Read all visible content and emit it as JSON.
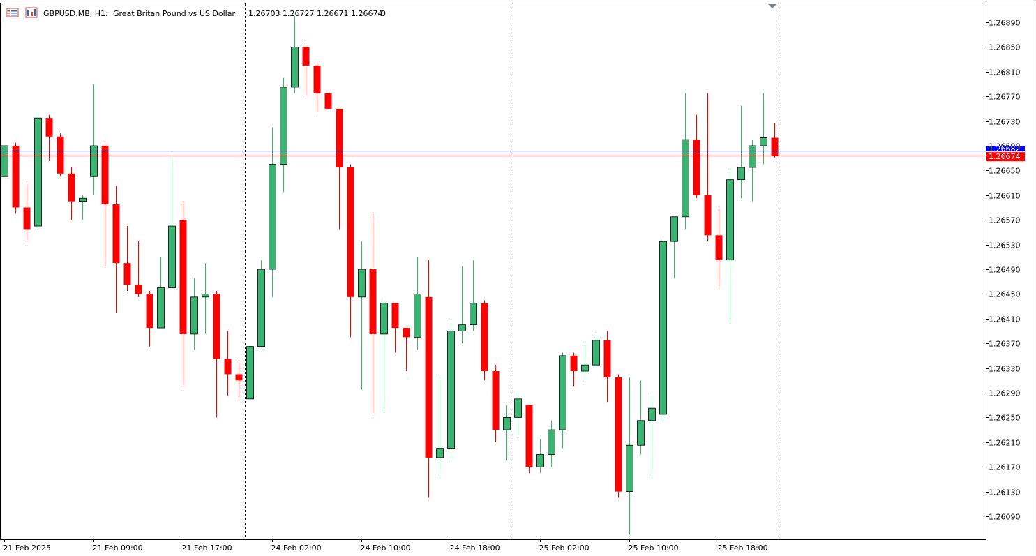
{
  "header": {
    "symbol": "GBPUSD.MB, H1:",
    "description": "Great Britan Pound vs US Dollar",
    "ohlc": "1.26703 1.26727 1.26671 1.26674",
    "volume": "0"
  },
  "colors": {
    "bull": "#3cb371",
    "bear": "#ff0000",
    "bid_line": "#ff0000",
    "ask_line": "#1a237e",
    "ask_label_bg": "#0000ff",
    "bid_label_bg": "#ff0000",
    "grid_separator": "#000000",
    "axis": "#000000"
  },
  "chart_data": {
    "type": "candlestick",
    "symbol": "GBPUSD.MB",
    "timeframe": "H1",
    "ylim": [
      1.2605,
      1.2695
    ],
    "y_ticks": [
      "1.26890",
      "1.26850",
      "1.26810",
      "1.26770",
      "1.26730",
      "1.26690",
      "1.26650",
      "1.26610",
      "1.26570",
      "1.26530",
      "1.26490",
      "1.26450",
      "1.26410",
      "1.26370",
      "1.26330",
      "1.26290",
      "1.26250",
      "1.26210",
      "1.26170",
      "1.26130",
      "1.26090"
    ],
    "x_labels": [
      {
        "index": 0,
        "label": "21 Feb 2025"
      },
      {
        "index": 8,
        "label": "21 Feb 09:00"
      },
      {
        "index": 16,
        "label": "21 Feb 17:00"
      },
      {
        "index": 24,
        "label": "24 Feb 02:00"
      },
      {
        "index": 32,
        "label": "24 Feb 10:00"
      },
      {
        "index": 40,
        "label": "24 Feb 18:00"
      },
      {
        "index": 48,
        "label": "25 Feb 02:00"
      },
      {
        "index": 56,
        "label": "25 Feb 10:00"
      },
      {
        "index": 64,
        "label": "25 Feb 18:00"
      }
    ],
    "day_separators": [
      22,
      46,
      70
    ],
    "bid": 1.26674,
    "bid_label": "1.26674",
    "ask_label": "1.26682",
    "ask": 1.26682,
    "candles": [
      [
        1.2664,
        1.2669,
        1.2664,
        1.2669
      ],
      [
        1.2669,
        1.26695,
        1.2658,
        1.2659
      ],
      [
        1.2659,
        1.2663,
        1.26535,
        1.26555
      ],
      [
        1.2656,
        1.26745,
        1.26555,
        1.26735
      ],
      [
        1.26735,
        1.2674,
        1.26665,
        1.26705
      ],
      [
        1.26705,
        1.2671,
        1.2664,
        1.26645
      ],
      [
        1.26645,
        1.26655,
        1.2657,
        1.266
      ],
      [
        1.266,
        1.2661,
        1.2657,
        1.26605
      ],
      [
        1.2664,
        1.2679,
        1.2661,
        1.2669
      ],
      [
        1.2669,
        1.26695,
        1.26495,
        1.26595
      ],
      [
        1.26595,
        1.26625,
        1.2642,
        1.265
      ],
      [
        1.265,
        1.2656,
        1.26455,
        1.26465
      ],
      [
        1.26465,
        1.26535,
        1.26445,
        1.2645
      ],
      [
        1.2645,
        1.26455,
        1.26365,
        1.26395
      ],
      [
        1.26395,
        1.2651,
        1.26395,
        1.2646
      ],
      [
        1.2646,
        1.26675,
        1.2646,
        1.2656
      ],
      [
        1.2657,
        1.266,
        1.263,
        1.26385
      ],
      [
        1.26385,
        1.26475,
        1.2636,
        1.26445
      ],
      [
        1.26445,
        1.265,
        1.26385,
        1.2645
      ],
      [
        1.2645,
        1.26455,
        1.2625,
        1.26345
      ],
      [
        1.26345,
        1.2639,
        1.26285,
        1.2632
      ],
      [
        1.2632,
        1.2634,
        1.2628,
        1.2631
      ],
      [
        1.2628,
        1.26365,
        1.2628,
        1.26365
      ],
      [
        1.26365,
        1.26505,
        1.26365,
        1.2649
      ],
      [
        1.2649,
        1.2672,
        1.26445,
        1.2666
      ],
      [
        1.2666,
        1.268,
        1.26615,
        1.26785
      ],
      [
        1.26785,
        1.269,
        1.26775,
        1.2685
      ],
      [
        1.2685,
        1.26855,
        1.2677,
        1.2682
      ],
      [
        1.2682,
        1.26825,
        1.26745,
        1.26775
      ],
      [
        1.26775,
        1.26775,
        1.2675,
        1.2675
      ],
      [
        1.2675,
        1.2675,
        1.26555,
        1.26655
      ],
      [
        1.26655,
        1.2666,
        1.2638,
        1.26445
      ],
      [
        1.26445,
        1.26535,
        1.26295,
        1.2649
      ],
      [
        1.2649,
        1.2658,
        1.26255,
        1.26385
      ],
      [
        1.26385,
        1.26445,
        1.2626,
        1.26435
      ],
      [
        1.26435,
        1.26435,
        1.26355,
        1.26395
      ],
      [
        1.26395,
        1.26395,
        1.26325,
        1.2638
      ],
      [
        1.2638,
        1.2651,
        1.2636,
        1.2645
      ],
      [
        1.26445,
        1.26505,
        1.2612,
        1.26185
      ],
      [
        1.26185,
        1.26315,
        1.26155,
        1.262
      ],
      [
        1.262,
        1.2641,
        1.2618,
        1.2639
      ],
      [
        1.2639,
        1.26495,
        1.2637,
        1.264
      ],
      [
        1.264,
        1.26505,
        1.2639,
        1.26435
      ],
      [
        1.26435,
        1.2644,
        1.2631,
        1.26325
      ],
      [
        1.26325,
        1.26335,
        1.2621,
        1.2623
      ],
      [
        1.2623,
        1.2627,
        1.2618,
        1.2625
      ],
      [
        1.2625,
        1.2629,
        1.2622,
        1.2628
      ],
      [
        1.2627,
        1.2627,
        1.2616,
        1.2617
      ],
      [
        1.2617,
        1.26215,
        1.2616,
        1.2619
      ],
      [
        1.2619,
        1.26245,
        1.2617,
        1.2623
      ],
      [
        1.2623,
        1.26355,
        1.262,
        1.2635
      ],
      [
        1.2635,
        1.26355,
        1.263,
        1.26325
      ],
      [
        1.26325,
        1.2637,
        1.2631,
        1.26335
      ],
      [
        1.26335,
        1.26385,
        1.2633,
        1.26375
      ],
      [
        1.26375,
        1.2639,
        1.26275,
        1.26315
      ],
      [
        1.26315,
        1.2632,
        1.2612,
        1.2613
      ],
      [
        1.2613,
        1.26315,
        1.2606,
        1.26205
      ],
      [
        1.26205,
        1.2631,
        1.2619,
        1.26245
      ],
      [
        1.26245,
        1.26285,
        1.26155,
        1.26265
      ],
      [
        1.26255,
        1.2654,
        1.26245,
        1.26535
      ],
      [
        1.26535,
        1.26575,
        1.26475,
        1.26575
      ],
      [
        1.26575,
        1.26775,
        1.26555,
        1.267
      ],
      [
        1.267,
        1.2674,
        1.26605,
        1.2661
      ],
      [
        1.2661,
        1.26775,
        1.26535,
        1.26545
      ],
      [
        1.26545,
        1.2659,
        1.2646,
        1.26505
      ],
      [
        1.26505,
        1.2665,
        1.26405,
        1.26635
      ],
      [
        1.26635,
        1.26755,
        1.26605,
        1.26655
      ],
      [
        1.26655,
        1.267,
        1.266,
        1.2669
      ],
      [
        1.2669,
        1.26775,
        1.2666,
        1.26703
      ],
      [
        1.26703,
        1.26727,
        1.26671,
        1.26674
      ]
    ]
  }
}
